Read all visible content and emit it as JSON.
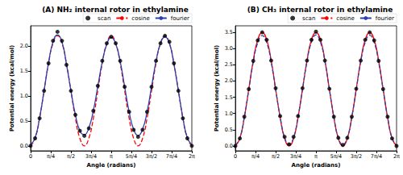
{
  "chart_data": [
    {
      "type": "line",
      "title": "(A) NH₂ internal rotor in ethylamine",
      "x_label": "Angle (radians)",
      "y_label": "Potential energy (kcal/mol)",
      "x": [
        0,
        0.1745,
        0.3491,
        0.5236,
        0.6981,
        0.8727,
        1.0472,
        1.2217,
        1.3963,
        1.5708,
        1.7453,
        1.9199,
        2.0944,
        2.2689,
        2.4435,
        2.618,
        2.7925,
        2.9671,
        3.1416,
        3.3161,
        3.4907,
        3.6652,
        3.8397,
        4.0143,
        4.1888,
        4.3633,
        4.5379,
        4.7124,
        4.8869,
        5.0615,
        5.236,
        5.4105,
        5.5851,
        5.7596,
        5.9341,
        6.1087,
        6.2832
      ],
      "series": [
        {
          "name": "scan",
          "type": "scatter",
          "marker": "circle",
          "color": "#000000",
          "values": [
            0.0,
            0.15,
            0.55,
            1.1,
            1.65,
            2.1,
            2.28,
            2.1,
            1.62,
            1.1,
            0.62,
            0.3,
            0.2,
            0.35,
            0.7,
            1.2,
            1.7,
            2.05,
            2.18,
            2.05,
            1.7,
            1.18,
            0.68,
            0.32,
            0.18,
            0.32,
            0.68,
            1.18,
            1.7,
            2.05,
            2.2,
            2.08,
            1.65,
            1.1,
            0.55,
            0.15,
            0.0
          ]
        },
        {
          "name": "cosine",
          "type": "line",
          "line_style": "dashed",
          "color": "#ff0000",
          "values": [
            0,
            0.15,
            0.55,
            1.1,
            1.65,
            2.05,
            2.2,
            2.05,
            1.65,
            1.1,
            0.55,
            0.15,
            0,
            0.15,
            0.55,
            1.1,
            1.65,
            2.05,
            2.2,
            2.05,
            1.65,
            1.1,
            0.55,
            0.15,
            0,
            0.15,
            0.55,
            1.1,
            1.65,
            2.05,
            2.2,
            2.05,
            1.65,
            1.1,
            0.55,
            0.15,
            0
          ]
        },
        {
          "name": "fourier",
          "type": "line",
          "line_style": "solid",
          "color": "#2c3fb0",
          "values": [
            0.02,
            0.16,
            0.56,
            1.1,
            1.66,
            2.08,
            2.22,
            2.08,
            1.63,
            1.1,
            0.62,
            0.3,
            0.22,
            0.36,
            0.7,
            1.19,
            1.68,
            2.03,
            2.17,
            2.04,
            1.69,
            1.18,
            0.68,
            0.33,
            0.2,
            0.33,
            0.68,
            1.18,
            1.69,
            2.05,
            2.18,
            2.05,
            1.63,
            1.1,
            0.56,
            0.16,
            0.02
          ]
        }
      ],
      "xlim": [
        0,
        6.2832
      ],
      "xticks": [
        0,
        {
          "value": 0.7854,
          "label": "π/4"
        },
        {
          "value": 1.5708,
          "label": "π/2"
        },
        {
          "value": 2.3562,
          "label": "3π/4"
        },
        {
          "value": 3.1416,
          "label": "π"
        },
        {
          "value": 3.927,
          "label": "5π/4"
        },
        {
          "value": 4.7124,
          "label": "3π/2"
        },
        {
          "value": 5.4978,
          "label": "7π/4"
        },
        {
          "value": 6.2832,
          "label": "2π"
        }
      ],
      "ylim": [
        -0.1,
        2.4
      ],
      "yticks": [
        {
          "value": 0,
          "label": "0.0"
        },
        {
          "value": 0.5,
          "label": "0.5"
        },
        {
          "value": 1,
          "label": "1.0"
        },
        {
          "value": 1.5,
          "label": "1.5"
        },
        {
          "value": 2,
          "label": "2.0"
        }
      ],
      "grid": false,
      "legend": "upper right"
    },
    {
      "type": "line",
      "title": "(B) CH₃ internal rotor in ethylamine",
      "x_label": "Angle (radians)",
      "y_label": "Potential energy (kcal/mol)",
      "x": [
        0,
        0.1745,
        0.3491,
        0.5236,
        0.6981,
        0.8727,
        1.0472,
        1.2217,
        1.3963,
        1.5708,
        1.7453,
        1.9199,
        2.0944,
        2.2689,
        2.4435,
        2.618,
        2.7925,
        2.9671,
        3.1416,
        3.3161,
        3.4907,
        3.6652,
        3.8397,
        4.0143,
        4.1888,
        4.3633,
        4.5379,
        4.7124,
        4.8869,
        5.0615,
        5.236,
        5.4105,
        5.5851,
        5.7596,
        5.9341,
        6.1087,
        6.2832
      ],
      "series": [
        {
          "name": "scan",
          "type": "scatter",
          "marker": "circle",
          "color": "#000000",
          "values": [
            0,
            0.23,
            0.9,
            1.75,
            2.62,
            3.25,
            3.5,
            3.27,
            2.63,
            1.78,
            0.92,
            0.28,
            0.05,
            0.28,
            0.92,
            1.78,
            2.63,
            3.27,
            3.52,
            3.27,
            2.63,
            1.76,
            0.9,
            0.25,
            0.03,
            0.25,
            0.9,
            1.76,
            2.63,
            3.27,
            3.5,
            3.25,
            2.62,
            1.75,
            0.9,
            0.23,
            0
          ]
        },
        {
          "name": "cosine",
          "type": "line",
          "line_style": "solid",
          "color": "#ff0000",
          "values": [
            0,
            0.23,
            0.88,
            1.75,
            2.63,
            3.27,
            3.5,
            3.27,
            2.63,
            1.75,
            0.88,
            0.23,
            0,
            0.23,
            0.88,
            1.75,
            2.63,
            3.27,
            3.5,
            3.27,
            2.63,
            1.75,
            0.88,
            0.23,
            0,
            0.23,
            0.88,
            1.75,
            2.63,
            3.27,
            3.5,
            3.27,
            2.63,
            1.75,
            0.88,
            0.23,
            0
          ]
        },
        {
          "name": "fourier",
          "type": "line",
          "line_style": "dashed",
          "color": "#2c3fb0",
          "values": [
            0.02,
            0.24,
            0.88,
            1.73,
            2.58,
            3.18,
            3.4,
            3.18,
            2.58,
            1.73,
            0.9,
            0.26,
            0.05,
            0.26,
            0.9,
            1.75,
            2.6,
            3.2,
            3.42,
            3.2,
            2.6,
            1.74,
            0.89,
            0.25,
            0.04,
            0.25,
            0.89,
            1.74,
            2.59,
            3.19,
            3.41,
            3.19,
            2.58,
            1.73,
            0.88,
            0.24,
            0.02
          ]
        }
      ],
      "xlim": [
        0,
        6.2832
      ],
      "xticks": [
        0,
        {
          "value": 0.7854,
          "label": "π/4"
        },
        {
          "value": 1.5708,
          "label": "π/2"
        },
        {
          "value": 2.3562,
          "label": "3π/4"
        },
        {
          "value": 3.1416,
          "label": "π"
        },
        {
          "value": 3.927,
          "label": "5π/4"
        },
        {
          "value": 4.7124,
          "label": "3π/2"
        },
        {
          "value": 5.4978,
          "label": "7π/4"
        },
        {
          "value": 6.2832,
          "label": "2π"
        }
      ],
      "ylim": [
        -0.15,
        3.7
      ],
      "yticks": [
        {
          "value": 0,
          "label": "0.0"
        },
        {
          "value": 0.5,
          "label": "0.5"
        },
        {
          "value": 1,
          "label": "1.0"
        },
        {
          "value": 1.5,
          "label": "1.5"
        },
        {
          "value": 2,
          "label": "2.0"
        },
        {
          "value": 2.5,
          "label": "2.5"
        },
        {
          "value": 3,
          "label": "3.0"
        },
        {
          "value": 3.5,
          "label": "3.5"
        }
      ],
      "grid": false,
      "legend": "upper right"
    }
  ]
}
